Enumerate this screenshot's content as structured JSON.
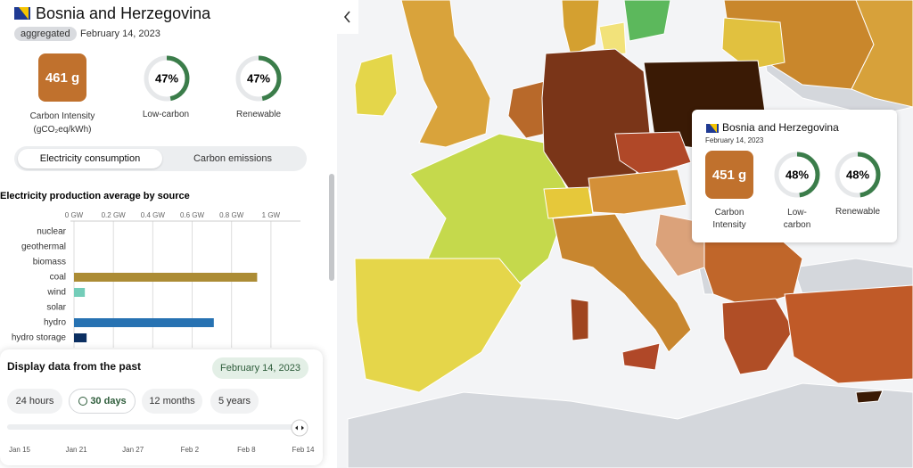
{
  "panel": {
    "zone": "Bosnia and Herzegovina",
    "badge": "aggregated",
    "date": "February 14, 2023",
    "carbon_intensity": "461 g",
    "carbon_intensity_label": "Carbon Intensity",
    "carbon_intensity_unit": "(gCO₂eq/kWh)",
    "low_carbon": {
      "value": 47,
      "label": "47%"
    },
    "low_carbon_label": "Low-carbon",
    "renewable": {
      "value": 47,
      "label": "47%"
    },
    "renewable_label": "Renewable",
    "toggle": [
      "Electricity consumption",
      "Carbon emissions"
    ]
  },
  "chart_data": {
    "type": "bar",
    "orientation": "horizontal",
    "title": "Electricity production average by source",
    "categories": [
      "nuclear",
      "geothermal",
      "biomass",
      "coal",
      "wind",
      "solar",
      "hydro",
      "hydro storage"
    ],
    "values": [
      0,
      0,
      0,
      0.93,
      0.055,
      0,
      0.71,
      0.064
    ],
    "colors": [
      "#aed36c",
      "#f0a34a",
      "#166a57",
      "#ac8c35",
      "#74cdb9",
      "#f3cb4a",
      "#2772b2",
      "#0b2f61"
    ],
    "xlim": [
      0,
      1.15
    ],
    "xticks": [
      {
        "value": 0,
        "label": "0 GW"
      },
      {
        "value": 0.2,
        "label": "0.2 GW"
      },
      {
        "value": 0.4,
        "label": "0.4 GW"
      },
      {
        "value": 0.6,
        "label": "0.6 GW"
      },
      {
        "value": 0.8,
        "label": "0.8 GW"
      },
      {
        "value": 1,
        "label": "1 GW"
      }
    ],
    "grid": true
  },
  "time_controls": {
    "title": "Display data from the past",
    "date": "February 14, 2023",
    "ranges": [
      "24 hours",
      "30 days",
      "12 months",
      "5 years"
    ],
    "selected": 1,
    "slider_labels": [
      "Jan 15",
      "Jan 21",
      "Jan 27",
      "Feb 2",
      "Feb 8",
      "Feb 14"
    ]
  },
  "tooltip": {
    "zone": "Bosnia and Herzegovina",
    "date": "February 14, 2023",
    "carbon_intensity": "451 g",
    "carbon_intensity_label": "Carbon Intensity",
    "low_carbon": {
      "value": 48,
      "label": "48%"
    },
    "low_carbon_label": "Low-carbon",
    "renewable": {
      "value": 48,
      "label": "48%"
    },
    "renewable_label": "Renewable"
  }
}
